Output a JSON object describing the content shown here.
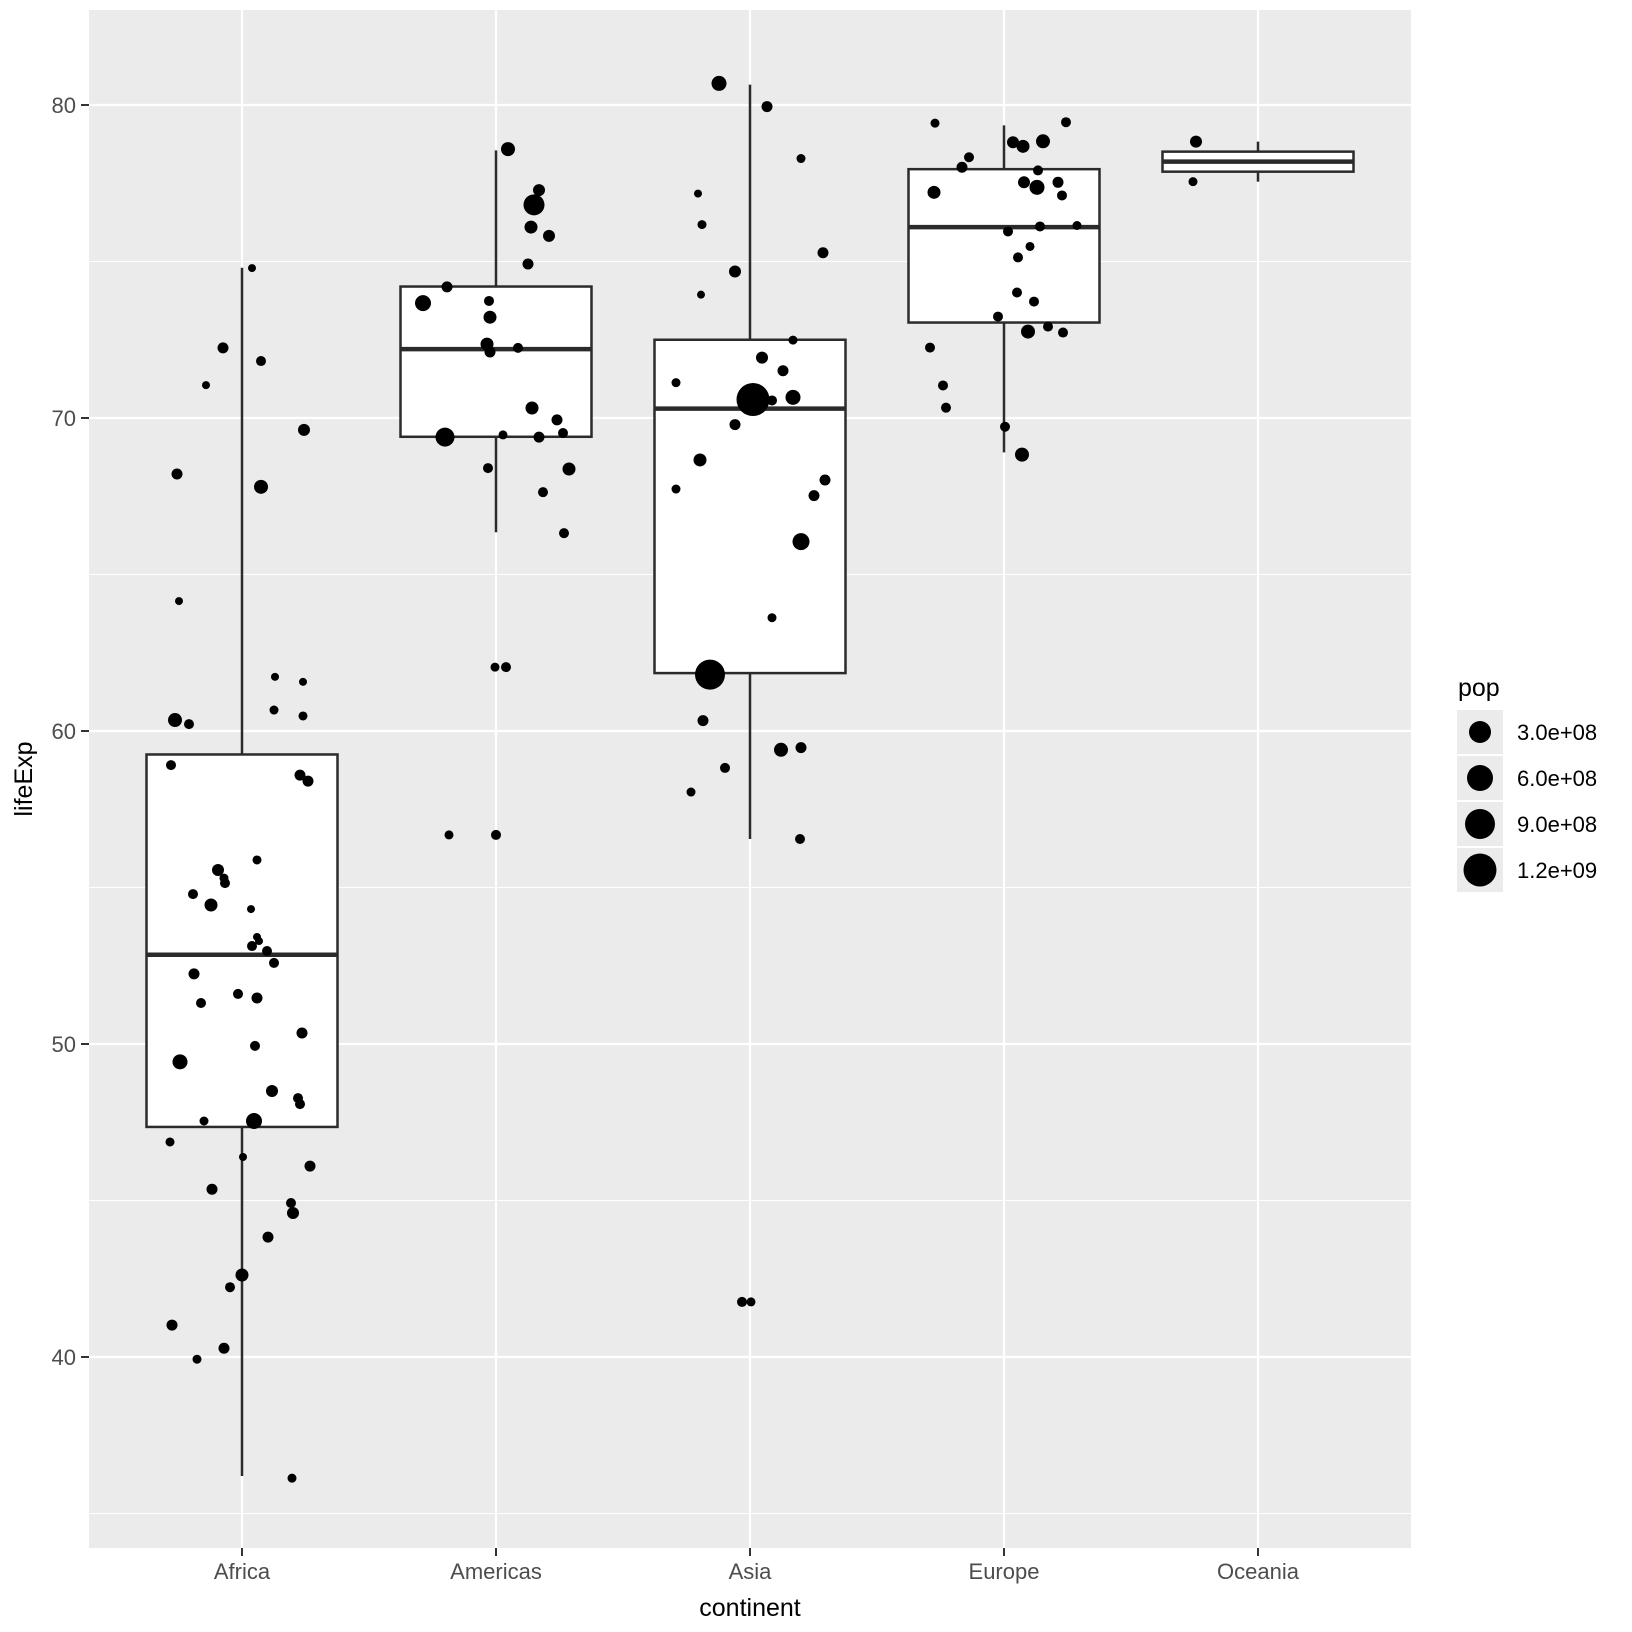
{
  "chart_data": {
    "type": "boxplot-jitter",
    "title": "",
    "xlabel": "continent",
    "ylabel": "lifeExp",
    "categories": [
      "Africa",
      "Americas",
      "Asia",
      "Europe",
      "Oceania"
    ],
    "y_axis": {
      "major_ticks": [
        40,
        50,
        60,
        70,
        80
      ],
      "minor_ticks": [
        35,
        45,
        55,
        65,
        75
      ],
      "range": [
        33.9,
        83.0
      ],
      "grid": "on",
      "panel_color": "#EBEBEB",
      "grid_color": "#FFFFFF"
    },
    "legend": {
      "title": "pop",
      "position": "right",
      "entries": [
        {
          "label": "3.0e+08",
          "r": 11
        },
        {
          "label": "6.0e+08",
          "r": 13
        },
        {
          "label": "9.0e+08",
          "r": 15
        },
        {
          "label": "1.2e+09",
          "r": 16.5
        }
      ]
    },
    "style": {
      "box_fill": "#FFFFFF",
      "box_stroke": "#2b2b2b",
      "point_color": "#000000",
      "tick_label_color": "#4d4d4d"
    },
    "groups": [
      {
        "name": "Africa",
        "box": {
          "min": 36.2,
          "q1": 47.35,
          "median": 52.85,
          "q3": 59.25,
          "max": 74.8
        },
        "points": [
          [
            10,
            74.79,
            4
          ],
          [
            -19,
            72.24,
            5.5
          ],
          [
            19,
            71.82,
            5
          ],
          [
            -36,
            71.05,
            4
          ],
          [
            62,
            69.62,
            6
          ],
          [
            -65,
            68.21,
            5.5
          ],
          [
            19,
            67.8,
            7
          ],
          [
            -63,
            64.15,
            4
          ],
          [
            33,
            61.73,
            4
          ],
          [
            61,
            61.57,
            4
          ],
          [
            -67,
            60.35,
            7
          ],
          [
            -53,
            60.22,
            5
          ],
          [
            32,
            60.67,
            4.5
          ],
          [
            61,
            60.48,
            4.5
          ],
          [
            -71,
            58.91,
            5
          ],
          [
            58,
            58.59,
            5.5
          ],
          [
            66,
            58.4,
            5.5
          ],
          [
            15,
            55.88,
            4.5
          ],
          [
            -24,
            55.56,
            6
          ],
          [
            -18,
            55.3,
            4.5
          ],
          [
            -17,
            55.14,
            5
          ],
          [
            -49,
            54.79,
            5
          ],
          [
            -31,
            54.44,
            6.5
          ],
          [
            9,
            54.31,
            4
          ],
          [
            15,
            53.42,
            4
          ],
          [
            17,
            53.29,
            4
          ],
          [
            10,
            53.13,
            5
          ],
          [
            25,
            52.97,
            5
          ],
          [
            32,
            52.59,
            5
          ],
          [
            -48,
            52.24,
            5.5
          ],
          [
            -4,
            51.6,
            5
          ],
          [
            15,
            51.47,
            5.5
          ],
          [
            -41,
            51.31,
            5
          ],
          [
            60,
            50.35,
            5.5
          ],
          [
            13,
            49.94,
            5
          ],
          [
            -62,
            49.43,
            7.5
          ],
          [
            30,
            48.5,
            6
          ],
          [
            56,
            48.27,
            5
          ],
          [
            58,
            48.08,
            5
          ],
          [
            -38,
            47.54,
            4.5
          ],
          [
            12,
            47.54,
            8
          ],
          [
            -72,
            46.87,
            4.5
          ],
          [
            1,
            46.39,
            4
          ],
          [
            68,
            46.1,
            5.5
          ],
          [
            -30,
            45.36,
            5.5
          ],
          [
            49,
            44.92,
            5
          ],
          [
            51,
            44.6,
            6
          ],
          [
            26,
            43.83,
            5.5
          ],
          [
            0,
            42.62,
            6.5
          ],
          [
            -12,
            42.23,
            5
          ],
          [
            -70,
            41.02,
            5.5
          ],
          [
            -18,
            40.28,
            5.5
          ],
          [
            -45,
            39.93,
            4.5
          ],
          [
            50,
            36.13,
            4.5
          ]
        ]
      },
      {
        "name": "Americas",
        "box": {
          "min": 66.35,
          "q1": 69.4,
          "median": 72.2,
          "q3": 74.2,
          "max": 78.55
        },
        "points": [
          [
            12,
            78.59,
            7
          ],
          [
            43,
            77.28,
            6
          ],
          [
            38,
            76.81,
            10.5
          ],
          [
            35,
            76.1,
            6.5
          ],
          [
            53,
            75.82,
            6
          ],
          [
            32,
            74.92,
            5.5
          ],
          [
            -49,
            74.19,
            5.5
          ],
          [
            -73,
            73.67,
            8
          ],
          [
            -7,
            73.74,
            5
          ],
          [
            -6,
            73.22,
            6.5
          ],
          [
            -9,
            72.36,
            6.5
          ],
          [
            -6,
            72.11,
            5.5
          ],
          [
            22,
            72.24,
            5
          ],
          [
            36,
            70.32,
            6.5
          ],
          [
            61,
            69.94,
            5.5
          ],
          [
            67,
            69.52,
            5
          ],
          [
            7,
            69.46,
            4.5
          ],
          [
            43,
            69.39,
            5.5
          ],
          [
            -51,
            69.39,
            9.5
          ],
          [
            -8,
            68.4,
            5
          ],
          [
            73,
            68.37,
            6.5
          ],
          [
            47,
            67.63,
            5
          ],
          [
            68,
            66.32,
            5
          ],
          [
            -1,
            62.04,
            4.5
          ],
          [
            10,
            62.04,
            5
          ],
          [
            -47,
            56.68,
            4.5
          ],
          [
            0,
            56.68,
            5
          ]
        ]
      },
      {
        "name": "Asia",
        "box": {
          "min": 56.55,
          "q1": 61.85,
          "median": 70.3,
          "q3": 72.5,
          "max": 80.65
        },
        "points": [
          [
            -31,
            80.69,
            7.5
          ],
          [
            17,
            79.95,
            5.5
          ],
          [
            51,
            78.29,
            4.5
          ],
          [
            -52,
            77.17,
            4
          ],
          [
            -48,
            76.18,
            4.5
          ],
          [
            73,
            75.28,
            5.5
          ],
          [
            -15,
            74.68,
            6
          ],
          [
            -49,
            73.94,
            4
          ],
          [
            43,
            72.49,
            4.5
          ],
          [
            12,
            71.93,
            6
          ],
          [
            33,
            71.51,
            5.5
          ],
          [
            -74,
            71.13,
            4.5
          ],
          [
            3,
            70.59,
            16.5
          ],
          [
            22,
            70.56,
            5
          ],
          [
            43,
            70.66,
            7.5
          ],
          [
            -15,
            69.79,
            5.5
          ],
          [
            -50,
            68.66,
            6.5
          ],
          [
            -74,
            67.73,
            4.5
          ],
          [
            75,
            68.02,
            5.5
          ],
          [
            64,
            67.52,
            5.5
          ],
          [
            51,
            66.05,
            8.5
          ],
          [
            22,
            63.62,
            4.5
          ],
          [
            -40,
            61.8,
            15
          ],
          [
            -47,
            60.33,
            5.5
          ],
          [
            31,
            59.4,
            7
          ],
          [
            51,
            59.47,
            5.5
          ],
          [
            -25,
            58.82,
            5
          ],
          [
            -59,
            58.05,
            4.5
          ],
          [
            50,
            56.55,
            5
          ],
          [
            -8,
            41.76,
            5
          ],
          [
            1,
            41.76,
            4.5
          ]
        ]
      },
      {
        "name": "Europe",
        "box": {
          "min": 68.9,
          "q1": 73.05,
          "median": 76.1,
          "q3": 77.95,
          "max": 79.35
        },
        "points": [
          [
            -69,
            79.42,
            4.5
          ],
          [
            62,
            79.45,
            5
          ],
          [
            9,
            78.81,
            6
          ],
          [
            19,
            78.68,
            6.5
          ],
          [
            39,
            78.84,
            7
          ],
          [
            -35,
            78.33,
            5
          ],
          [
            -42,
            78.01,
            5.5
          ],
          [
            34,
            77.91,
            5
          ],
          [
            20,
            77.53,
            6
          ],
          [
            33,
            77.37,
            7.5
          ],
          [
            54,
            77.53,
            5.5
          ],
          [
            -70,
            77.21,
            6.5
          ],
          [
            58,
            77.11,
            5
          ],
          [
            4,
            75.96,
            5
          ],
          [
            36,
            76.12,
            5
          ],
          [
            73,
            76.15,
            4.5
          ],
          [
            26,
            75.48,
            4.5
          ],
          [
            14,
            75.13,
            5
          ],
          [
            13,
            74.01,
            5
          ],
          [
            30,
            73.72,
            5
          ],
          [
            -6,
            73.24,
            5
          ],
          [
            24,
            72.76,
            7
          ],
          [
            44,
            72.92,
            5
          ],
          [
            59,
            72.73,
            5
          ],
          [
            -74,
            72.25,
            5
          ],
          [
            -61,
            71.04,
            5
          ],
          [
            -58,
            70.33,
            5
          ],
          [
            1,
            69.72,
            5
          ],
          [
            18,
            68.83,
            7
          ]
        ]
      },
      {
        "name": "Oceania",
        "box": {
          "min": 77.55,
          "q1": 77.87,
          "median": 78.19,
          "q3": 78.51,
          "max": 78.83
        },
        "points": [
          [
            -62,
            78.83,
            6
          ],
          [
            -65,
            77.55,
            4.5
          ]
        ]
      }
    ]
  }
}
